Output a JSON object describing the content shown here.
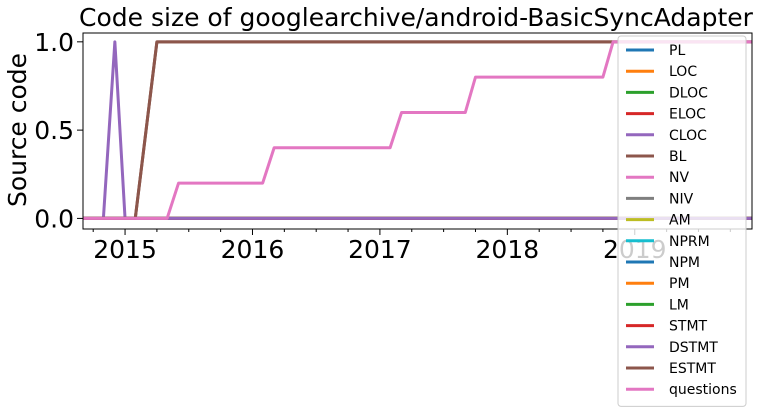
{
  "chart_data": {
    "type": "line",
    "title": "Code size of googlearchive/android-BasicSyncAdapter",
    "xlabel": "",
    "ylabel": "Source code",
    "x_ticks": [
      "2015",
      "2016",
      "2017",
      "2018",
      "2019"
    ],
    "y_ticks": [
      "0.0",
      "0.5",
      "1.0"
    ],
    "xlim": [
      2014.67,
      2019.92
    ],
    "ylim": [
      -0.06,
      1.05
    ],
    "grid": false,
    "legend_position": "right",
    "series": [
      {
        "name": "PL",
        "color": "#1f77b4",
        "points": [
          [
            2014.67,
            0
          ],
          [
            2019.92,
            0
          ]
        ]
      },
      {
        "name": "LOC",
        "color": "#ff7f0e",
        "points": [
          [
            2014.67,
            0
          ],
          [
            2019.92,
            0
          ]
        ]
      },
      {
        "name": "DLOC",
        "color": "#2ca02c",
        "points": [
          [
            2014.67,
            0
          ],
          [
            2019.92,
            0
          ]
        ]
      },
      {
        "name": "ELOC",
        "color": "#d62728",
        "points": [
          [
            2014.67,
            0
          ],
          [
            2019.92,
            0
          ]
        ]
      },
      {
        "name": "CLOC",
        "color": "#9467bd",
        "points": [
          [
            2014.67,
            0
          ],
          [
            2014.83,
            0
          ],
          [
            2014.92,
            1.0
          ],
          [
            2015.0,
            0
          ],
          [
            2019.92,
            0
          ]
        ]
      },
      {
        "name": "BL",
        "color": "#8c564b",
        "points": [
          [
            2014.67,
            0
          ],
          [
            2015.08,
            0
          ],
          [
            2015.25,
            1.0
          ],
          [
            2019.92,
            1.0
          ]
        ]
      },
      {
        "name": "NV",
        "color": "#e377c2",
        "points": [
          [
            2014.67,
            0
          ],
          [
            2019.92,
            0
          ]
        ]
      },
      {
        "name": "NIV",
        "color": "#7f7f7f",
        "points": [
          [
            2014.67,
            0
          ],
          [
            2019.92,
            0
          ]
        ]
      },
      {
        "name": "AM",
        "color": "#bcbd22",
        "points": [
          [
            2014.67,
            0
          ],
          [
            2019.92,
            0
          ]
        ]
      },
      {
        "name": "NPRM",
        "color": "#17becf",
        "points": [
          [
            2014.67,
            0
          ],
          [
            2019.92,
            0
          ]
        ]
      },
      {
        "name": "NPM",
        "color": "#1f77b4",
        "points": [
          [
            2014.67,
            0
          ],
          [
            2019.92,
            0
          ]
        ]
      },
      {
        "name": "PM",
        "color": "#ff7f0e",
        "points": [
          [
            2014.67,
            0
          ],
          [
            2019.92,
            0
          ]
        ]
      },
      {
        "name": "LM",
        "color": "#2ca02c",
        "points": [
          [
            2014.67,
            0
          ],
          [
            2019.92,
            0
          ]
        ]
      },
      {
        "name": "STMT",
        "color": "#d62728",
        "points": [
          [
            2014.67,
            0
          ],
          [
            2019.92,
            0
          ]
        ]
      },
      {
        "name": "DSTMT",
        "color": "#9467bd",
        "points": [
          [
            2014.67,
            0
          ],
          [
            2019.92,
            0
          ]
        ]
      },
      {
        "name": "ESTMT",
        "color": "#8c564b",
        "points": [
          [
            2014.67,
            0
          ],
          [
            2015.08,
            0
          ],
          [
            2015.25,
            1.0
          ],
          [
            2019.92,
            1.0
          ]
        ]
      },
      {
        "name": "questions",
        "color": "#e377c2",
        "points": [
          [
            2014.67,
            0
          ],
          [
            2015.33,
            0
          ],
          [
            2015.42,
            0.2
          ],
          [
            2016.08,
            0.2
          ],
          [
            2016.17,
            0.4
          ],
          [
            2017.08,
            0.4
          ],
          [
            2017.17,
            0.6
          ],
          [
            2017.67,
            0.6
          ],
          [
            2017.75,
            0.8
          ],
          [
            2018.75,
            0.8
          ],
          [
            2018.83,
            1.0
          ],
          [
            2019.92,
            1.0
          ]
        ]
      }
    ]
  }
}
